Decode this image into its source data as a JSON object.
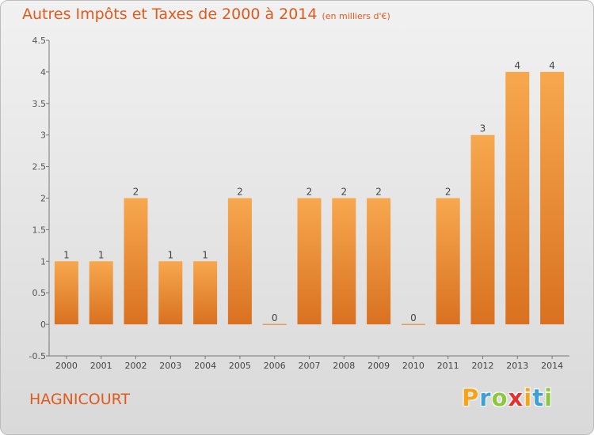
{
  "header": {
    "title": "Autres Impôts et Taxes de 2000 à 2014",
    "subtitle": "(en milliers d'€)"
  },
  "footer": {
    "commune": "HAGNICOURT"
  },
  "brand": {
    "letters": [
      "P",
      "r",
      "o",
      "x",
      "i",
      "t",
      "i"
    ],
    "colors": [
      "#f7a21b",
      "#3f9fd8",
      "#8dc63f",
      "#e6302f",
      "#f7a21b",
      "#3f9fd8",
      "#8dc63f"
    ]
  },
  "colors": {
    "bar_light": "#f7a84f",
    "bar_dark": "#d97120",
    "title": "#e05a1c",
    "axis": "#777777"
  },
  "chart_data": {
    "type": "bar",
    "title": "Autres Impôts et Taxes de 2000 à 2014",
    "subtitle": "(en milliers d'€)",
    "categories": [
      "2000",
      "2001",
      "2002",
      "2003",
      "2004",
      "2005",
      "2006",
      "2007",
      "2008",
      "2009",
      "2010",
      "2011",
      "2012",
      "2013",
      "2014"
    ],
    "values": [
      1,
      1,
      2,
      1,
      1,
      2,
      0,
      2,
      2,
      2,
      0,
      2,
      3,
      4,
      4
    ],
    "data_labels": [
      "1",
      "1",
      "2",
      "1",
      "1",
      "2",
      "0",
      "2",
      "2",
      "2",
      "0",
      "2",
      "3",
      "4",
      "4"
    ],
    "ylim": [
      -0.5,
      4.5
    ],
    "yticks": [
      -0.5,
      0,
      0.5,
      1,
      1.5,
      2,
      2.5,
      3,
      3.5,
      4,
      4.5
    ],
    "ytick_labels": [
      "-0.5",
      "0",
      "0.5",
      "1",
      "1.5",
      "2",
      "2.5",
      "3",
      "3.5",
      "4",
      "4.5"
    ],
    "grid": false,
    "legend": "none"
  }
}
